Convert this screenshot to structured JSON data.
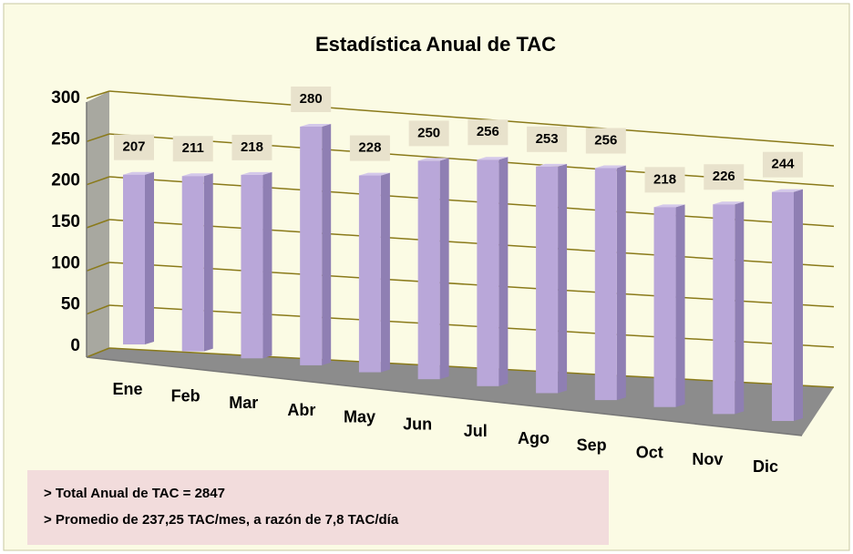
{
  "chart_data": {
    "type": "bar",
    "title": "Estadística Anual de TAC",
    "categories": [
      "Ene",
      "Feb",
      "Mar",
      "Abr",
      "May",
      "Jun",
      "Jul",
      "Ago",
      "Sep",
      "Oct",
      "Nov",
      "Dic"
    ],
    "values": [
      207,
      211,
      218,
      280,
      228,
      250,
      256,
      253,
      256,
      218,
      226,
      244
    ],
    "color": "#b9a7d9",
    "ylim": [
      0,
      300
    ],
    "yticks": [
      0,
      50,
      100,
      150,
      200,
      250,
      300
    ],
    "grid": true,
    "annotations": [
      "> Total Anual de TAC = 2847",
      "> Promedio de 237,25 TAC/mes, a razón de 7,8 TAC/día"
    ]
  }
}
